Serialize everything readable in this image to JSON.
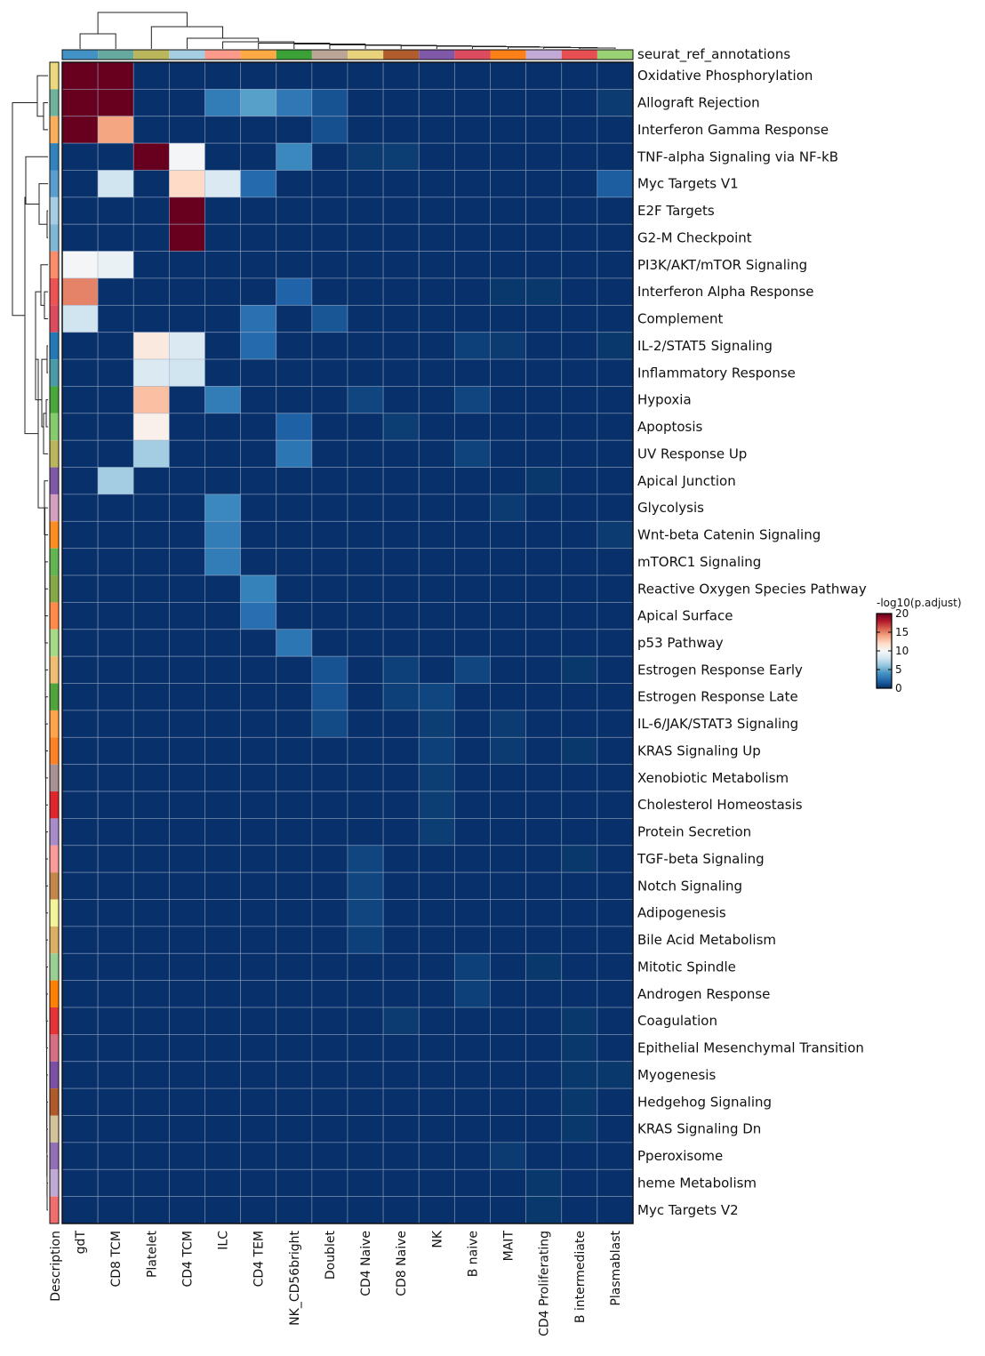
{
  "chart_data": {
    "type": "heatmap",
    "title": "",
    "column_annotation_label": "seurat_ref_annotations",
    "row_annotation_label": "Description",
    "legend": {
      "title": "-log10(p.adjust)",
      "ticks": [
        0,
        5,
        10,
        15,
        20
      ],
      "range": [
        0,
        20
      ],
      "colormap": "RdBu_r",
      "position": "right"
    },
    "columns": [
      "gdT",
      "CD8 TCM",
      "Platelet",
      "CD4 TCM",
      "ILC",
      "CD4 TEM",
      "NK_CD56bright",
      "Doublet",
      "CD4 Naive",
      "CD8 Naive",
      "NK",
      "B naive",
      "MAIT",
      "CD4 Proliferating",
      "B intermediate",
      "Plasmablast"
    ],
    "column_colors": [
      "#4292c6",
      "#66a99f",
      "#bab65c",
      "#a6cee3",
      "#fb9a8a",
      "#fdaa45",
      "#3aa136",
      "#bba597",
      "#e8d27c",
      "#b15c2c",
      "#7f58a8",
      "#dc4b5e",
      "#fe8018",
      "#c1aad5",
      "#e84f52",
      "#99d174"
    ],
    "rows": [
      "Oxidative Phosphorylation",
      "Allograft Rejection",
      "Interferon Gamma Response",
      "TNF-alpha Signaling via NF-kB",
      "Myc Targets V1",
      "E2F Targets",
      "G2-M Checkpoint",
      "PI3K/AKT/mTOR  Signaling",
      "Interferon Alpha Response",
      "Complement",
      "IL-2/STAT5 Signaling",
      "Inflammatory Response",
      "Hypoxia",
      "Apoptosis",
      "UV Response Up",
      "Apical Junction",
      "Glycolysis",
      "Wnt-beta Catenin Signaling",
      "mTORC1 Signaling",
      "Reactive Oxygen Species Pathway",
      "Apical Surface",
      "p53 Pathway",
      "Estrogen Response Early",
      "Estrogen Response Late",
      "IL-6/JAK/STAT3 Signaling",
      "KRAS Signaling Up",
      "Xenobiotic Metabolism",
      "Cholesterol Homeostasis",
      "Protein Secretion",
      "TGF-beta Signaling",
      "Notch Signaling",
      "Adipogenesis",
      "Bile Acid Metabolism",
      "Mitotic Spindle",
      "Androgen Response",
      "Coagulation",
      "Epithelial Mesenchymal Transition",
      "Myogenesis",
      "Hedgehog Signaling",
      "KRAS Signaling Dn",
      "Pperoxisome",
      "heme Metabolism",
      "Myc Targets V2"
    ],
    "row_colors": [
      "#ecd97e",
      "#6fb39b",
      "#fdae5b",
      "#3182bd",
      "#5a9dd0",
      "#a6cde3",
      "#80b6d6",
      "#fc8d6b",
      "#ee5252",
      "#dc4b5e",
      "#2379b7",
      "#4a9ba8",
      "#48a83a",
      "#86cc6e",
      "#bab65c",
      "#7f58a8",
      "#d49fc1",
      "#ff8c1f",
      "#63b553",
      "#86a947",
      "#ff8a4a",
      "#a6da86",
      "#f0bd72",
      "#4fa53b",
      "#ffa449",
      "#ff8224",
      "#a89192",
      "#e0262b",
      "#a88cc9",
      "#fb9a99",
      "#c5864a",
      "#f5f49a",
      "#dbb064",
      "#99cf92",
      "#ff7f00",
      "#e73336",
      "#d76f82",
      "#7a4fa4",
      "#b05a2a",
      "#d3c39a",
      "#9170b8",
      "#c1a9d6",
      "#f26e6e"
    ],
    "values": [
      [
        20,
        20,
        0,
        0,
        0,
        0,
        0,
        0,
        0,
        0,
        0,
        0,
        0,
        0,
        0,
        0
      ],
      [
        20,
        20,
        0,
        0,
        3,
        4.5,
        2.8,
        1.3,
        0,
        0,
        0,
        0,
        0,
        0,
        0,
        0.4
      ],
      [
        20,
        14,
        0,
        0,
        0,
        0,
        0,
        1.2,
        0,
        0,
        0,
        0,
        0,
        0,
        0,
        0
      ],
      [
        0,
        0,
        20,
        9.8,
        0,
        0,
        3.5,
        0,
        0.4,
        0.5,
        0,
        0,
        0,
        0,
        0,
        0
      ],
      [
        0,
        8,
        0,
        12,
        8.5,
        2.2,
        0,
        0,
        0,
        0,
        0,
        0,
        0,
        0,
        0,
        1.7
      ],
      [
        0,
        0,
        0,
        20,
        0,
        0,
        0,
        0,
        0,
        0,
        0,
        0,
        0,
        0,
        0,
        0
      ],
      [
        0,
        0,
        0,
        20,
        0,
        0,
        0,
        0,
        0,
        0,
        0,
        0,
        0,
        0,
        0,
        0
      ],
      [
        9.8,
        9.3,
        0,
        0,
        0,
        0,
        0,
        0,
        0,
        0,
        0,
        0,
        0,
        0,
        0,
        0
      ],
      [
        15,
        0,
        0,
        0,
        0,
        0,
        1.9,
        0,
        0,
        0,
        0,
        0,
        0.3,
        0.3,
        0,
        0
      ],
      [
        8,
        0,
        0,
        0,
        0,
        2.5,
        0,
        1.4,
        0,
        0,
        0,
        0,
        0,
        0,
        0,
        0
      ],
      [
        0,
        0,
        11,
        8.5,
        0,
        2.2,
        0,
        0,
        0,
        0,
        0,
        0.6,
        0.4,
        0,
        0,
        0.3
      ],
      [
        0,
        0,
        8.5,
        8,
        0,
        0,
        0,
        0,
        0,
        0,
        0,
        0,
        0,
        0,
        0,
        0
      ],
      [
        0,
        0,
        13,
        0,
        3,
        0,
        0,
        0,
        0.8,
        0,
        0,
        0.8,
        0,
        0,
        0,
        0
      ],
      [
        0,
        0,
        10.5,
        0,
        0,
        0,
        1.8,
        0,
        0,
        0.5,
        0,
        0,
        0,
        0,
        0,
        0
      ],
      [
        0,
        0,
        6.5,
        0,
        0,
        0,
        2.7,
        0,
        0,
        0,
        0,
        0.7,
        0,
        0,
        0,
        0
      ],
      [
        0,
        6.5,
        0,
        0,
        0,
        0,
        0,
        0,
        0,
        0,
        0,
        0,
        0,
        0.3,
        0,
        0
      ],
      [
        0,
        0,
        0,
        0,
        3.5,
        0,
        0,
        0,
        0,
        0,
        0,
        0,
        0.4,
        0,
        0,
        0
      ],
      [
        0,
        0,
        0,
        0,
        3,
        0,
        0,
        0,
        0,
        0,
        0,
        0,
        0,
        0,
        0,
        0.4
      ],
      [
        0,
        0,
        0,
        0,
        3,
        0,
        0,
        0,
        0,
        0,
        0,
        0,
        0,
        0,
        0,
        0
      ],
      [
        0,
        0,
        0,
        0,
        0,
        3.2,
        0,
        0,
        0,
        0,
        0,
        0,
        0,
        0,
        0,
        0
      ],
      [
        0,
        0,
        0,
        0,
        0,
        2.4,
        0,
        0,
        0,
        0,
        0,
        0,
        0,
        0,
        0,
        0
      ],
      [
        0,
        0,
        0,
        0,
        0,
        0,
        2.7,
        0,
        0,
        0,
        0,
        0,
        0,
        0,
        0,
        0
      ],
      [
        0,
        0,
        0,
        0,
        0,
        0,
        0,
        1.3,
        0,
        0.6,
        0,
        0.8,
        0,
        0,
        0.3,
        0
      ],
      [
        0,
        0,
        0,
        0,
        0,
        0,
        0,
        1.3,
        0,
        0.6,
        0.8,
        0,
        0,
        0,
        0,
        0
      ],
      [
        0,
        0,
        0,
        0,
        0,
        0,
        0,
        1.0,
        0,
        0,
        0.5,
        0,
        0.4,
        0,
        0,
        0
      ],
      [
        0,
        0,
        0,
        0,
        0,
        0,
        0,
        0,
        0,
        0,
        0.6,
        0,
        0.4,
        0,
        0.3,
        0
      ],
      [
        0,
        0,
        0,
        0,
        0,
        0,
        0,
        0,
        0,
        0,
        0.5,
        0,
        0,
        0,
        0,
        0
      ],
      [
        0,
        0,
        0,
        0,
        0,
        0,
        0,
        0,
        0,
        0,
        0.5,
        0,
        0,
        0,
        0,
        0
      ],
      [
        0,
        0,
        0,
        0,
        0,
        0,
        0,
        0,
        0,
        0,
        0.5,
        0,
        0,
        0,
        0,
        0
      ],
      [
        0,
        0,
        0,
        0,
        0,
        0,
        0,
        0,
        0.8,
        0,
        0,
        0,
        0,
        0,
        0.3,
        0
      ],
      [
        0,
        0,
        0,
        0,
        0,
        0,
        0,
        0,
        0.8,
        0,
        0,
        0,
        0,
        0,
        0,
        0
      ],
      [
        0,
        0,
        0,
        0,
        0,
        0,
        0,
        0,
        0.8,
        0,
        0,
        0,
        0,
        0,
        0,
        0
      ],
      [
        0,
        0,
        0,
        0,
        0,
        0,
        0,
        0,
        0.6,
        0,
        0,
        0,
        0,
        0,
        0,
        0
      ],
      [
        0,
        0,
        0,
        0,
        0,
        0,
        0,
        0,
        0,
        0,
        0,
        0.6,
        0,
        0.3,
        0,
        0
      ],
      [
        0,
        0,
        0,
        0,
        0,
        0,
        0,
        0,
        0,
        0,
        0,
        0.6,
        0,
        0,
        0,
        0
      ],
      [
        0,
        0,
        0,
        0,
        0,
        0,
        0,
        0,
        0,
        0.4,
        0,
        0,
        0,
        0,
        0.3,
        0
      ],
      [
        0,
        0,
        0,
        0,
        0,
        0,
        0,
        0,
        0,
        0,
        0,
        0,
        0,
        0,
        0.3,
        0
      ],
      [
        0,
        0,
        0,
        0,
        0,
        0,
        0,
        0,
        0,
        0,
        0,
        0,
        0,
        0,
        0.3,
        0.3
      ],
      [
        0,
        0,
        0,
        0,
        0,
        0,
        0,
        0,
        0,
        0,
        0,
        0,
        0,
        0,
        0.3,
        0
      ],
      [
        0,
        0,
        0,
        0,
        0,
        0,
        0,
        0,
        0,
        0,
        0,
        0,
        0,
        0,
        0.3,
        0
      ],
      [
        0,
        0,
        0,
        0,
        0,
        0,
        0,
        0,
        0,
        0,
        0,
        0,
        0.4,
        0,
        0,
        0
      ],
      [
        0,
        0,
        0,
        0,
        0,
        0,
        0,
        0,
        0,
        0,
        0,
        0,
        0,
        0.3,
        0,
        0
      ],
      [
        0,
        0,
        0,
        0,
        0,
        0,
        0,
        0,
        0,
        0,
        0,
        0,
        0,
        0.3,
        0,
        0
      ]
    ],
    "grid": true
  }
}
